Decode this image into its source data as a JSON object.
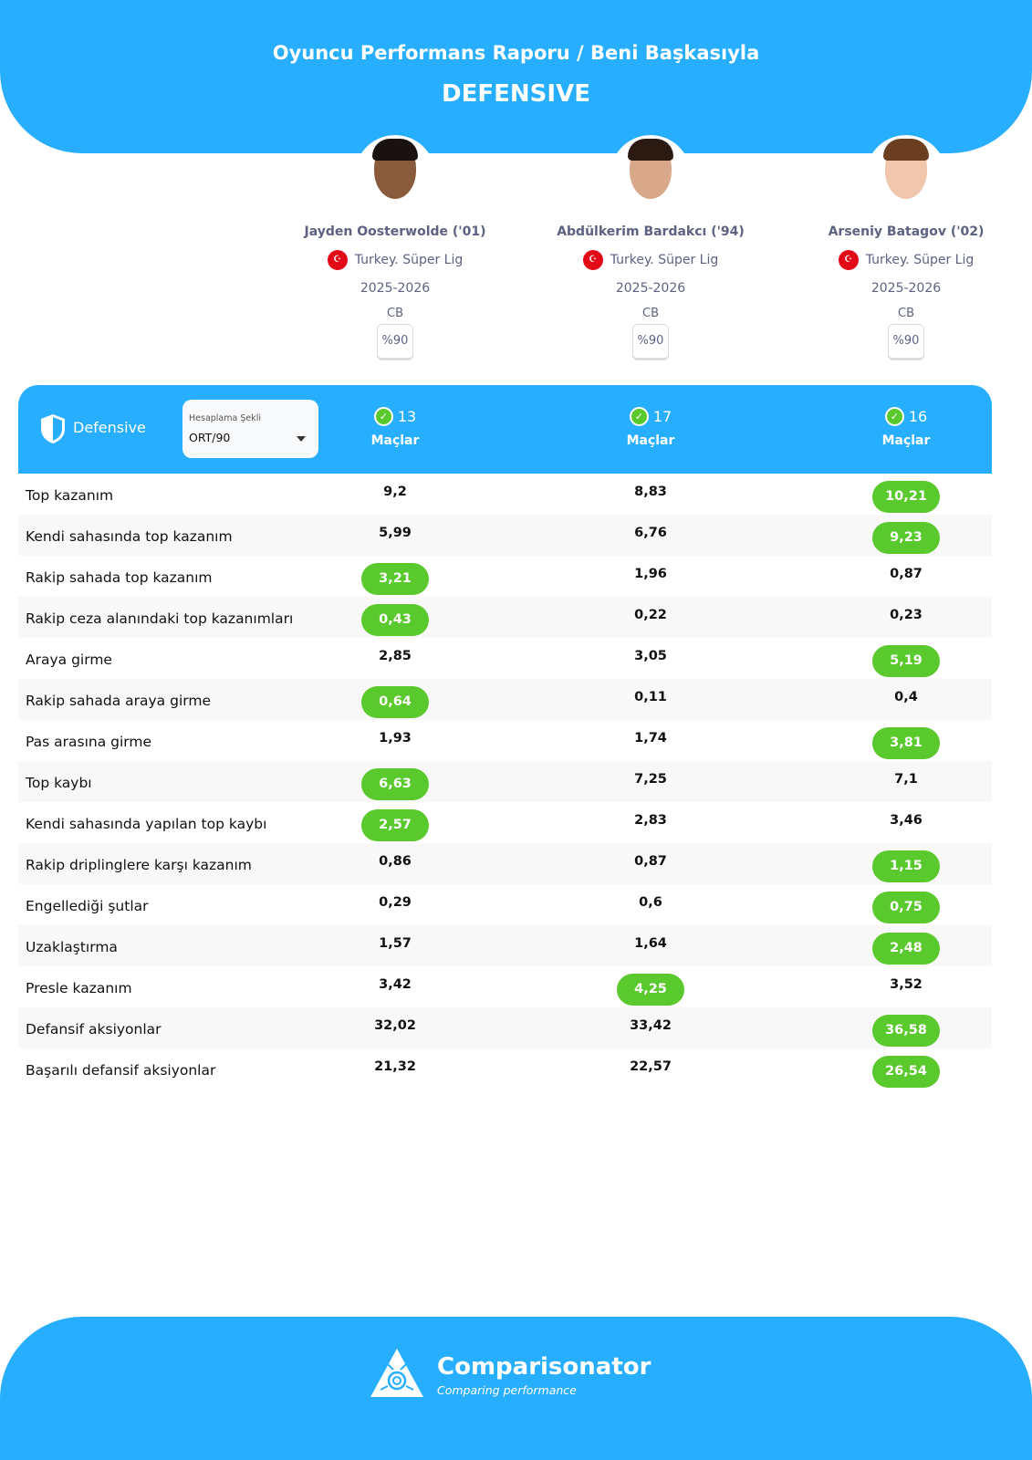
{
  "header": {
    "title": "Oyuncu Performans Raporu / Beni Başkasıyla",
    "subtitle": "DEFENSIVE"
  },
  "players": [
    {
      "name": "Jayden Oosterwolde ('01)",
      "league": "Turkey. Süper Lig",
      "season": "2025-2026",
      "position": "CB",
      "percent": "%90",
      "matches": "13"
    },
    {
      "name": "Abdülkerim Bardakcı ('94)",
      "league": "Turkey. Süper Lig",
      "season": "2025-2026",
      "position": "CB",
      "percent": "%90",
      "matches": "17"
    },
    {
      "name": "Arseniy Batagov ('02)",
      "league": "Turkey. Süper Lig",
      "season": "2025-2026",
      "position": "CB",
      "percent": "%90",
      "matches": "16"
    }
  ],
  "table_header": {
    "section": "Defensive",
    "calc_label": "Hesaplama Şekli",
    "calc_value": "ORT/90",
    "matches_label": "Maçlar"
  },
  "colors": {
    "primary": "#27aeff",
    "best": "#5ac92e"
  },
  "rows": [
    {
      "label": "Top kazanım",
      "values": [
        "9,2",
        "8,83",
        "10,21"
      ],
      "best": 2
    },
    {
      "label": "Kendi sahasında top kazanım",
      "values": [
        "5,99",
        "6,76",
        "9,23"
      ],
      "best": 2
    },
    {
      "label": "Rakip sahada top kazanım",
      "values": [
        "3,21",
        "1,96",
        "0,87"
      ],
      "best": 0
    },
    {
      "label": "Rakip ceza alanındaki top kazanımları",
      "values": [
        "0,43",
        "0,22",
        "0,23"
      ],
      "best": 0
    },
    {
      "label": "Araya girme",
      "values": [
        "2,85",
        "3,05",
        "5,19"
      ],
      "best": 2
    },
    {
      "label": "Rakip sahada araya girme",
      "values": [
        "0,64",
        "0,11",
        "0,4"
      ],
      "best": 0
    },
    {
      "label": "Pas arasına girme",
      "values": [
        "1,93",
        "1,74",
        "3,81"
      ],
      "best": 2
    },
    {
      "label": "Top kaybı",
      "values": [
        "6,63",
        "7,25",
        "7,1"
      ],
      "best": 0
    },
    {
      "label": "Kendi sahasında yapılan top kaybı",
      "values": [
        "2,57",
        "2,83",
        "3,46"
      ],
      "best": 0
    },
    {
      "label": "Rakip driplinglere karşı kazanım",
      "values": [
        "0,86",
        "0,87",
        "1,15"
      ],
      "best": 2
    },
    {
      "label": "Engellediği şutlar",
      "values": [
        "0,29",
        "0,6",
        "0,75"
      ],
      "best": 2
    },
    {
      "label": "Uzaklaştırma",
      "values": [
        "1,57",
        "1,64",
        "2,48"
      ],
      "best": 2
    },
    {
      "label": "Presle kazanım",
      "values": [
        "3,42",
        "4,25",
        "3,52"
      ],
      "best": 1
    },
    {
      "label": "Defansif aksiyonlar",
      "values": [
        "32,02",
        "33,42",
        "36,58"
      ],
      "best": 2
    },
    {
      "label": "Başarılı defansif aksiyonlar",
      "values": [
        "21,32",
        "22,57",
        "26,54"
      ],
      "best": 2
    }
  ],
  "footer": {
    "brand": "Comparisonator",
    "tagline": "Comparing performance"
  }
}
